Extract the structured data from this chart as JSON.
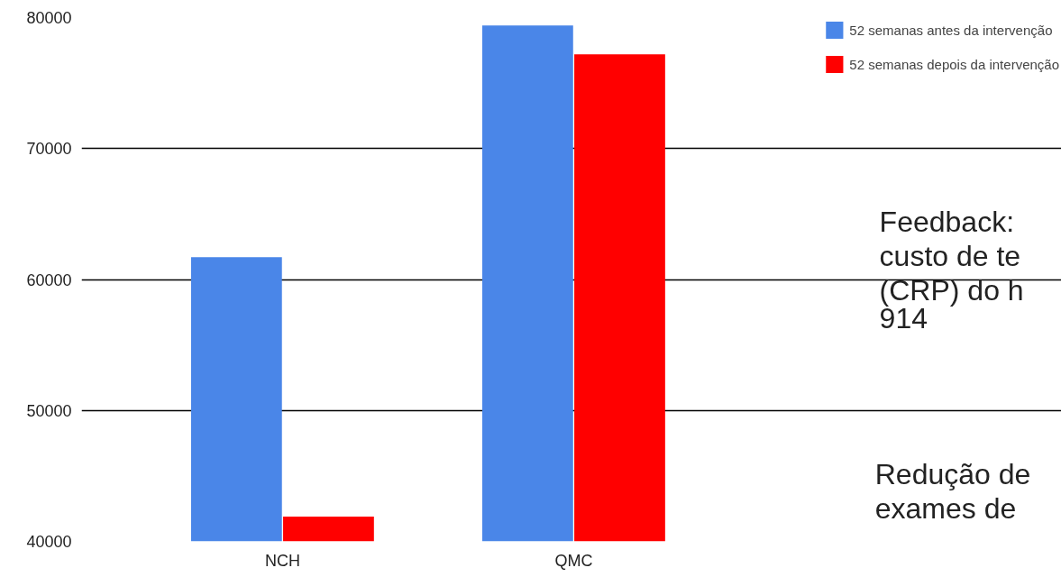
{
  "chart_data": {
    "type": "bar",
    "categories": [
      "NCH",
      "QMC"
    ],
    "series": [
      {
        "name": "52 semanas antes da intervenção",
        "color": "#4a86e8",
        "values": [
          61700,
          79400
        ]
      },
      {
        "name": "52 semanas depois da intervenção",
        "color": "#ff0000",
        "values": [
          41900,
          77200
        ]
      }
    ],
    "ylim": [
      40000,
      80000
    ],
    "yticks": [
      40000,
      50000,
      60000,
      70000,
      80000
    ],
    "grid": "y",
    "legend": "top right",
    "annotations": [
      "Feedback:\ncusto de te\n(CRP) do h\n914",
      "Redução de\nexames de"
    ]
  }
}
